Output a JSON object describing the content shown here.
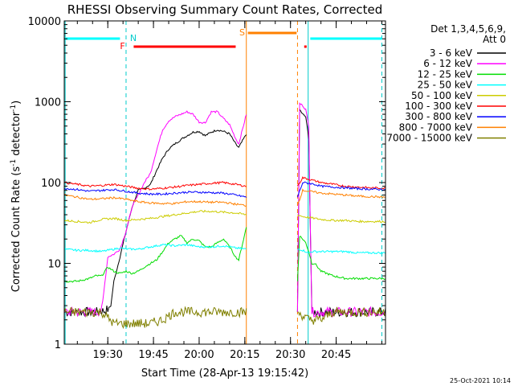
{
  "chart_data": {
    "type": "line",
    "title": "RHESSI Observing Summary Count Rates, Corrected",
    "xlabel": "Start Time (28-Apr-13 19:15:42)",
    "ylabel_parts": [
      "Corrected Count Rate (s",
      "-1",
      " detector",
      "-1",
      ")"
    ],
    "x_ticks": [
      "19:30",
      "19:45",
      "20:00",
      "20:15",
      "20:30",
      "20:45"
    ],
    "x_tick_minutes": [
      30,
      45,
      60,
      75,
      90,
      105
    ],
    "xlim_minutes_after_19_00": [
      15.7,
      121.2
    ],
    "y_scale": "log",
    "ylim": [
      1,
      10000
    ],
    "y_ticks": [
      "1",
      "10",
      "100",
      "1000",
      "10000"
    ],
    "legend_header": [
      "Det 1,3,4,5,6,9,",
      "Att 0"
    ],
    "legend_placement": "right",
    "timestamp": "25-Oct-2021 10:14",
    "flag_labels": {
      "night": "N",
      "flare": "F",
      "saa": "S"
    },
    "data_gaps_minutes": [
      [
        75.5,
        92.3
      ]
    ],
    "series": [
      {
        "name": "3 - 6 keV",
        "color": "#000000",
        "x": [
          15.7,
          26,
          29,
          30,
          31,
          32,
          34,
          36,
          38,
          40,
          42,
          44,
          46,
          48,
          50,
          52,
          54,
          56,
          58,
          60,
          62,
          64,
          66,
          68,
          70,
          72,
          73,
          75.5,
          92.3,
          93,
          94,
          95,
          96,
          97,
          98,
          100,
          102,
          104,
          106,
          108,
          110,
          112,
          114,
          116,
          118,
          121.2
        ],
        "y": [
          2.5,
          2.5,
          2.6,
          2.7,
          3,
          6,
          12,
          25,
          50,
          80,
          85,
          95,
          140,
          200,
          260,
          300,
          340,
          380,
          420,
          430,
          380,
          420,
          450,
          430,
          400,
          300,
          270,
          400,
          2.5,
          800,
          700,
          650,
          350,
          2.5,
          2.5,
          2.5,
          2.5,
          2.5,
          2.5,
          2.5,
          2.5,
          2.5,
          2.5,
          2.5,
          2.5,
          2.5
        ]
      },
      {
        "name": "6 - 12 keV",
        "color": "#ff00ff",
        "x": [
          15.7,
          26,
          28,
          30,
          32,
          34,
          36,
          38,
          40,
          42,
          44,
          46,
          48,
          50,
          52,
          54,
          56,
          58,
          60,
          62,
          64,
          66,
          68,
          70,
          72,
          73,
          75.5,
          92.3,
          93,
          94,
          95,
          96,
          97,
          98,
          100,
          104,
          108,
          112,
          116,
          121.2
        ],
        "y": [
          2.5,
          2.5,
          2.6,
          12,
          13,
          15,
          25,
          50,
          70,
          100,
          130,
          250,
          450,
          580,
          650,
          700,
          750,
          700,
          560,
          550,
          750,
          750,
          620,
          520,
          350,
          300,
          700,
          2.5,
          950,
          900,
          800,
          500,
          2.5,
          2.5,
          2.5,
          2.5,
          2.5,
          2.5,
          2.5,
          2.5
        ]
      },
      {
        "name": "12 - 25 keV",
        "color": "#00dd00",
        "x": [
          15.7,
          20,
          24,
          26,
          28,
          30,
          32,
          34,
          36,
          38,
          40,
          42,
          44,
          46,
          48,
          50,
          52,
          54,
          56,
          58,
          60,
          62,
          64,
          66,
          68,
          70,
          72,
          73,
          75.5,
          92.3,
          93,
          94,
          95,
          96,
          97,
          98,
          100,
          104,
          108,
          112,
          116,
          121.2
        ],
        "y": [
          6,
          6,
          6.5,
          7,
          7,
          9,
          8,
          7.5,
          8,
          7.5,
          8,
          9,
          10,
          11,
          14,
          18,
          20,
          22,
          18,
          20,
          19,
          16,
          16,
          18,
          20,
          16,
          12,
          11,
          28,
          6,
          22,
          20,
          18,
          14,
          10,
          10,
          8,
          7,
          6.5,
          6.5,
          6.5,
          6.5
        ]
      },
      {
        "name": "25 - 50 keV",
        "color": "#00ffff",
        "x": [
          15.7,
          20,
          24,
          28,
          30,
          32,
          34,
          36,
          40,
          44,
          48,
          52,
          56,
          60,
          64,
          68,
          72,
          75.5,
          92.3,
          93,
          94,
          95,
          96,
          97,
          98,
          100,
          104,
          108,
          112,
          116,
          121.2
        ],
        "y": [
          15,
          14.5,
          14.5,
          14,
          14.5,
          15,
          15.5,
          15,
          15,
          16,
          17,
          16.5,
          17,
          16,
          16,
          16.5,
          15.5,
          15,
          15,
          15,
          14.5,
          14,
          13.5,
          14,
          14,
          14,
          14,
          14,
          13.5,
          13.5,
          13.5
        ]
      },
      {
        "name": "50 - 100 keV",
        "color": "#cccc00",
        "x": [
          15.7,
          20,
          24,
          28,
          32,
          36,
          40,
          44,
          48,
          52,
          56,
          60,
          64,
          68,
          72,
          75.5,
          92.3,
          94,
          96,
          98,
          100,
          104,
          108,
          112,
          116,
          121.2
        ],
        "y": [
          34,
          33,
          32,
          35,
          36,
          34,
          35,
          36,
          38,
          40,
          42,
          44,
          44,
          43,
          42,
          40,
          40,
          38,
          37,
          36,
          35,
          34,
          34,
          33,
          33,
          33
        ]
      },
      {
        "name": "100 - 300 keV",
        "color": "#ff0000",
        "x": [
          15.7,
          20,
          24,
          28,
          32,
          36,
          40,
          44,
          48,
          52,
          56,
          60,
          64,
          68,
          72,
          75.5,
          92.3,
          94,
          96,
          98,
          100,
          104,
          108,
          112,
          116,
          121.2
        ],
        "y": [
          100,
          95,
          90,
          92,
          95,
          90,
          85,
          83,
          85,
          88,
          92,
          95,
          98,
          100,
          95,
          90,
          90,
          115,
          110,
          105,
          100,
          95,
          90,
          88,
          86,
          85
        ]
      },
      {
        "name": "300 - 800 keV",
        "color": "#0000ff",
        "x": [
          15.7,
          20,
          24,
          28,
          32,
          36,
          40,
          44,
          48,
          52,
          56,
          60,
          64,
          68,
          72,
          75.5,
          92.3,
          94,
          96,
          98,
          100,
          104,
          108,
          112,
          116,
          121.2
        ],
        "y": [
          85,
          82,
          78,
          80,
          82,
          78,
          74,
          72,
          72,
          74,
          76,
          76,
          75,
          74,
          70,
          66,
          66,
          100,
          98,
          95,
          90,
          88,
          86,
          84,
          83,
          82
        ]
      },
      {
        "name": "800 - 7000 keV",
        "color": "#ff8000",
        "x": [
          15.7,
          20,
          24,
          28,
          32,
          36,
          40,
          44,
          48,
          52,
          56,
          60,
          64,
          68,
          72,
          75.5,
          92.3,
          94,
          96,
          98,
          100,
          104,
          108,
          112,
          116,
          121.2
        ],
        "y": [
          70,
          66,
          62,
          63,
          65,
          62,
          58,
          56,
          55,
          55,
          58,
          58,
          57,
          57,
          54,
          52,
          52,
          80,
          78,
          76,
          74,
          72,
          70,
          68,
          67,
          66
        ]
      },
      {
        "name": "7000 - 15000 keV",
        "color": "#808000",
        "x": [
          15.7,
          20,
          24,
          28,
          32,
          36,
          40,
          44,
          48,
          52,
          56,
          60,
          64,
          68,
          72,
          75.5,
          92.3,
          96,
          100,
          104,
          108,
          112,
          116,
          121.2
        ],
        "y": [
          2.5,
          2.5,
          2.5,
          2.5,
          1.8,
          1.8,
          1.8,
          1.8,
          2,
          2.5,
          2.5,
          2.5,
          2.5,
          2.5,
          2.5,
          2.5,
          2.5,
          2,
          2,
          2.5,
          2.5,
          2.5,
          2.5,
          2.5
        ]
      }
    ]
  }
}
